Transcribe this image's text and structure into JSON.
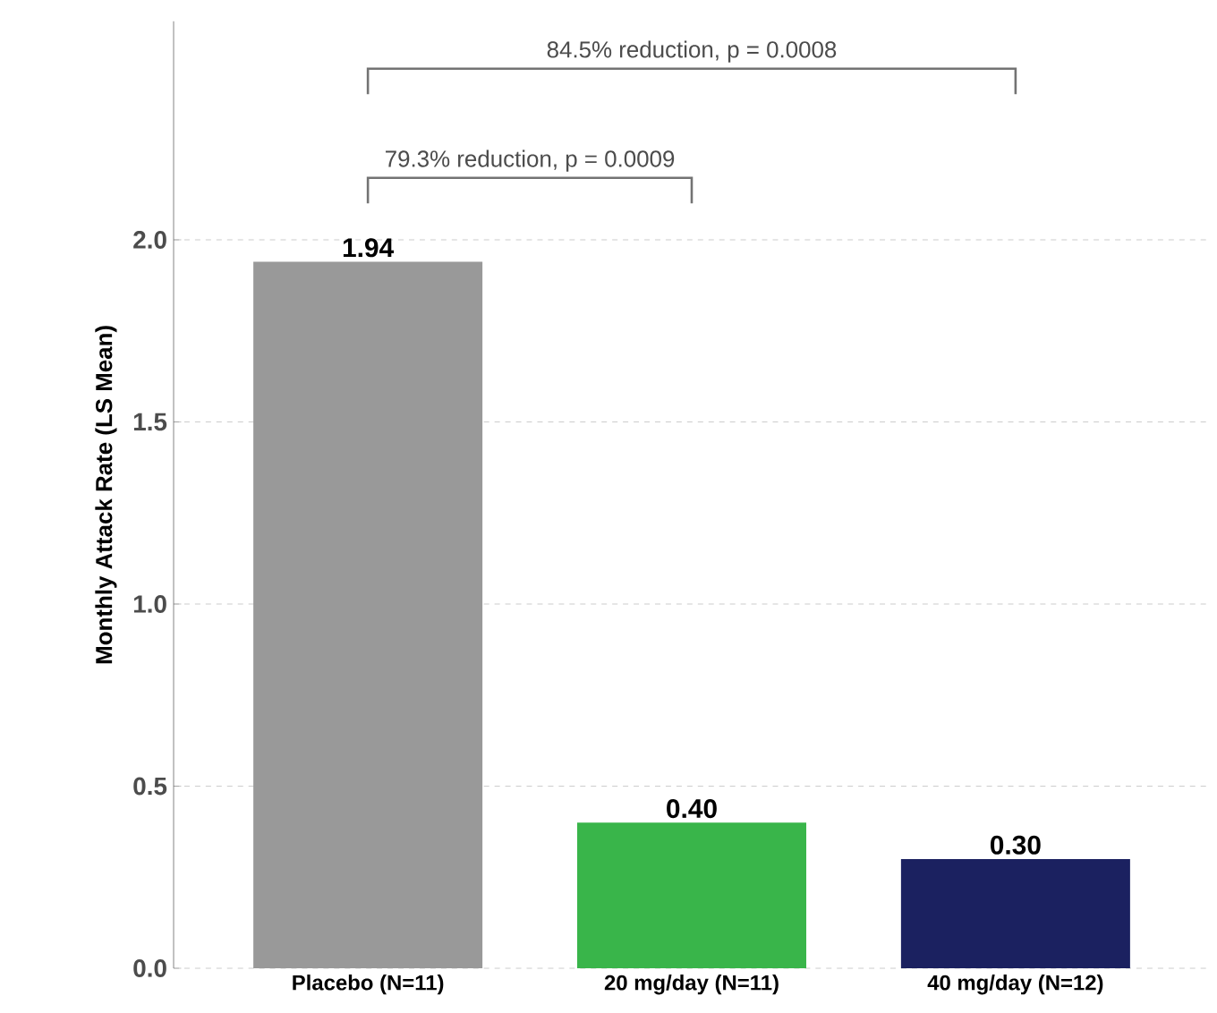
{
  "chart_data": {
    "type": "bar",
    "ylabel": "Monthly Attack Rate (LS Mean)",
    "categories": [
      "Placebo (N=11)",
      "20 mg/day (N=11)",
      "40 mg/day (N=12)"
    ],
    "values": [
      1.94,
      0.4,
      0.3
    ],
    "colors": [
      "#999999",
      "#39b54a",
      "#1b2160"
    ],
    "value_labels": [
      "1.94",
      "0.40",
      "0.30"
    ],
    "ylim": [
      0,
      2.6
    ],
    "yticks": [
      {
        "value": 0,
        "label": "0.0"
      },
      {
        "value": 0.5,
        "label": "0.5"
      },
      {
        "value": 1,
        "label": "1.0"
      },
      {
        "value": 1.5,
        "label": "1.5"
      },
      {
        "value": 2,
        "label": "2.0"
      }
    ],
    "grid": "y",
    "annotations": [
      "84.5% reduction, p = 0.0008",
      "79.3% reduction, p = 0.0009"
    ]
  }
}
